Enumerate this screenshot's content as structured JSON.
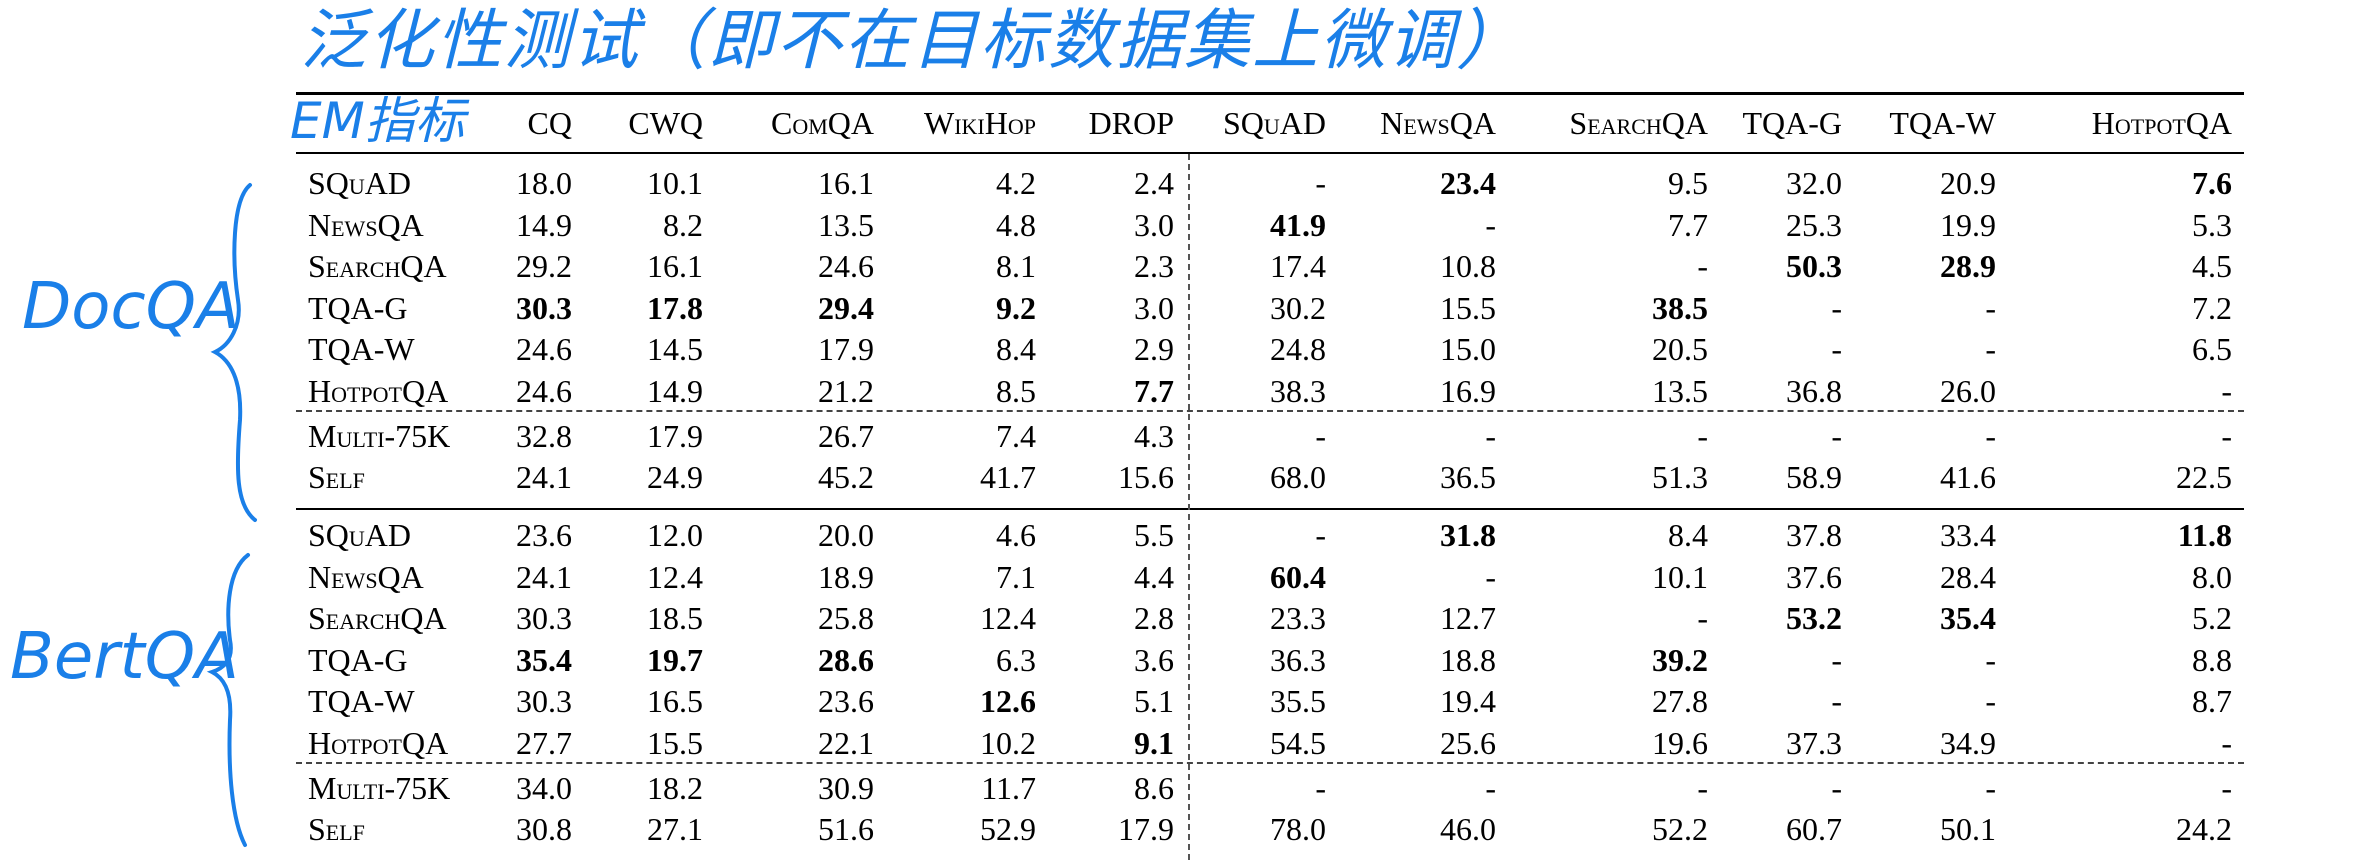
{
  "annotations": {
    "title": "泛化性测试（即不在目标数据集上微调）",
    "metric": "EM指标",
    "group_docqa": "DocQA",
    "group_bertqa": "BertQA"
  },
  "table": {
    "columns": [
      "CQ",
      "CWQ",
      "ComQA",
      "WikiHop",
      "DROP",
      "SQuAD",
      "NewsQA",
      "SearchQA",
      "TQA-G",
      "TQA-W",
      "HotpotQA"
    ],
    "groups": [
      {
        "model": "DocQA",
        "rows": [
          {
            "name": "SQuAD",
            "values": [
              "18.0",
              "10.1",
              "16.1",
              "4.2",
              "2.4",
              "-",
              "23.4",
              "9.5",
              "32.0",
              "20.9",
              "7.6"
            ],
            "bold": [
              6,
              10
            ]
          },
          {
            "name": "NewsQA",
            "values": [
              "14.9",
              "8.2",
              "13.5",
              "4.8",
              "3.0",
              "41.9",
              "-",
              "7.7",
              "25.3",
              "19.9",
              "5.3"
            ],
            "bold": [
              5
            ]
          },
          {
            "name": "SearchQA",
            "values": [
              "29.2",
              "16.1",
              "24.6",
              "8.1",
              "2.3",
              "17.4",
              "10.8",
              "-",
              "50.3",
              "28.9",
              "4.5"
            ],
            "bold": [
              8,
              9
            ]
          },
          {
            "name": "TQA-G",
            "values": [
              "30.3",
              "17.8",
              "29.4",
              "9.2",
              "3.0",
              "30.2",
              "15.5",
              "38.5",
              "-",
              "-",
              "7.2"
            ],
            "bold": [
              0,
              1,
              2,
              3,
              7
            ]
          },
          {
            "name": "TQA-W",
            "values": [
              "24.6",
              "14.5",
              "17.9",
              "8.4",
              "2.9",
              "24.8",
              "15.0",
              "20.5",
              "-",
              "-",
              "6.5"
            ],
            "bold": []
          },
          {
            "name": "HotpotQA",
            "values": [
              "24.6",
              "14.9",
              "21.2",
              "8.5",
              "7.7",
              "38.3",
              "16.9",
              "13.5",
              "36.8",
              "26.0",
              "-"
            ],
            "bold": [
              4
            ]
          },
          {
            "name": "Multi-75K",
            "values": [
              "32.8",
              "17.9",
              "26.7",
              "7.4",
              "4.3",
              "-",
              "-",
              "-",
              "-",
              "-",
              "-"
            ],
            "bold": []
          },
          {
            "name": "Self",
            "values": [
              "24.1",
              "24.9",
              "45.2",
              "41.7",
              "15.6",
              "68.0",
              "36.5",
              "51.3",
              "58.9",
              "41.6",
              "22.5"
            ],
            "bold": []
          }
        ]
      },
      {
        "model": "BertQA",
        "rows": [
          {
            "name": "SQuAD",
            "values": [
              "23.6",
              "12.0",
              "20.0",
              "4.6",
              "5.5",
              "-",
              "31.8",
              "8.4",
              "37.8",
              "33.4",
              "11.8"
            ],
            "bold": [
              6,
              10
            ]
          },
          {
            "name": "NewsQA",
            "values": [
              "24.1",
              "12.4",
              "18.9",
              "7.1",
              "4.4",
              "60.4",
              "-",
              "10.1",
              "37.6",
              "28.4",
              "8.0"
            ],
            "bold": [
              5
            ]
          },
          {
            "name": "SearchQA",
            "values": [
              "30.3",
              "18.5",
              "25.8",
              "12.4",
              "2.8",
              "23.3",
              "12.7",
              "-",
              "53.2",
              "35.4",
              "5.2"
            ],
            "bold": [
              8,
              9
            ]
          },
          {
            "name": "TQA-G",
            "values": [
              "35.4",
              "19.7",
              "28.6",
              "6.3",
              "3.6",
              "36.3",
              "18.8",
              "39.2",
              "-",
              "-",
              "8.8"
            ],
            "bold": [
              0,
              1,
              2,
              7
            ]
          },
          {
            "name": "TQA-W",
            "values": [
              "30.3",
              "16.5",
              "23.6",
              "12.6",
              "5.1",
              "35.5",
              "19.4",
              "27.8",
              "-",
              "-",
              "8.7"
            ],
            "bold": [
              3
            ]
          },
          {
            "name": "HotpotQA",
            "values": [
              "27.7",
              "15.5",
              "22.1",
              "10.2",
              "9.1",
              "54.5",
              "25.6",
              "19.6",
              "37.3",
              "34.9",
              "-"
            ],
            "bold": [
              4
            ]
          },
          {
            "name": "Multi-75K",
            "values": [
              "34.0",
              "18.2",
              "30.9",
              "11.7",
              "8.6",
              "-",
              "-",
              "-",
              "-",
              "-",
              "-"
            ],
            "bold": []
          },
          {
            "name": "Self",
            "values": [
              "30.8",
              "27.1",
              "51.6",
              "52.9",
              "17.9",
              "78.0",
              "46.0",
              "52.2",
              "60.7",
              "50.1",
              "24.2"
            ],
            "bold": []
          }
        ]
      }
    ]
  }
}
